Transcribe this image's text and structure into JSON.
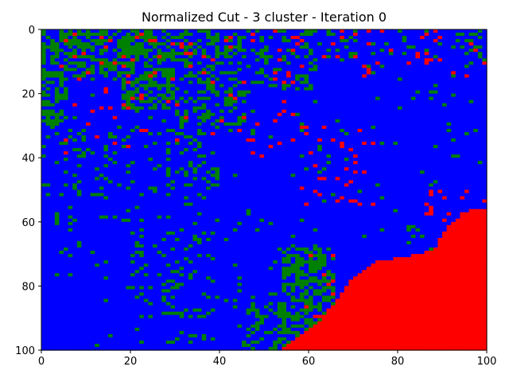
{
  "chart_data": {
    "type": "heatmap",
    "title": "Normalized Cut - 3 cluster - Iteration 0",
    "xlabel": "",
    "ylabel": "",
    "xlim": [
      0,
      100
    ],
    "ylim": [
      100,
      0
    ],
    "y_inverted": true,
    "xticks": [
      "0",
      "20",
      "40",
      "60",
      "80",
      "100"
    ],
    "yticks": [
      "0",
      "20",
      "40",
      "60",
      "80",
      "100"
    ],
    "grid_size": [
      100,
      100
    ],
    "clusters": [
      {
        "id": 0,
        "color": "#0000ff"
      },
      {
        "id": 1,
        "color": "#008000"
      },
      {
        "id": 2,
        "color": "#ff0000"
      }
    ],
    "red_region_boundary": [
      {
        "x": 53,
        "y": 100
      },
      {
        "x": 56,
        "y": 98
      },
      {
        "x": 60,
        "y": 94
      },
      {
        "x": 63,
        "y": 90
      },
      {
        "x": 66,
        "y": 85
      },
      {
        "x": 69,
        "y": 79
      },
      {
        "x": 72,
        "y": 75
      },
      {
        "x": 76,
        "y": 72
      },
      {
        "x": 82,
        "y": 71
      },
      {
        "x": 88,
        "y": 69
      },
      {
        "x": 90,
        "y": 64
      },
      {
        "x": 93,
        "y": 59
      },
      {
        "x": 96,
        "y": 57
      },
      {
        "x": 100,
        "y": 57
      }
    ],
    "green_regions": [
      {
        "x": [
          0,
          6
        ],
        "y": [
          0,
          30
        ],
        "density": 0.55
      },
      {
        "x": [
          6,
          20
        ],
        "y": [
          0,
          15
        ],
        "density": 0.5
      },
      {
        "x": [
          18,
          30
        ],
        "y": [
          0,
          25
        ],
        "density": 0.55
      },
      {
        "x": [
          30,
          46
        ],
        "y": [
          0,
          30
        ],
        "density": 0.35
      },
      {
        "x": [
          46,
          62
        ],
        "y": [
          0,
          20
        ],
        "density": 0.2
      },
      {
        "x": [
          62,
          100
        ],
        "y": [
          0,
          10
        ],
        "density": 0.12
      },
      {
        "x": [
          0,
          30
        ],
        "y": [
          30,
          60
        ],
        "density": 0.08
      },
      {
        "x": [
          28,
          40
        ],
        "y": [
          30,
          50
        ],
        "density": 0.18
      },
      {
        "x": [
          20,
          40
        ],
        "y": [
          60,
          90
        ],
        "density": 0.12
      },
      {
        "x": [
          54,
          66
        ],
        "y": [
          68,
          100
        ],
        "density": 0.55
      },
      {
        "x": [
          46,
          54
        ],
        "y": [
          85,
          100
        ],
        "density": 0.4
      },
      {
        "x": [
          0,
          100
        ],
        "y": [
          0,
          100
        ],
        "density": 0.03
      }
    ],
    "red_speckle_regions": [
      {
        "x": [
          4,
          58
        ],
        "y": [
          0,
          40
        ],
        "density": 0.05
      },
      {
        "x": [
          55,
          100
        ],
        "y": [
          0,
          15
        ],
        "density": 0.05
      },
      {
        "x": [
          58,
          75
        ],
        "y": [
          30,
          55
        ],
        "density": 0.07
      },
      {
        "x": [
          86,
          100
        ],
        "y": [
          50,
          60
        ],
        "density": 0.18
      },
      {
        "x": [
          58,
          70
        ],
        "y": [
          70,
          90
        ],
        "density": 0.05
      }
    ],
    "noise_seed": 7
  }
}
